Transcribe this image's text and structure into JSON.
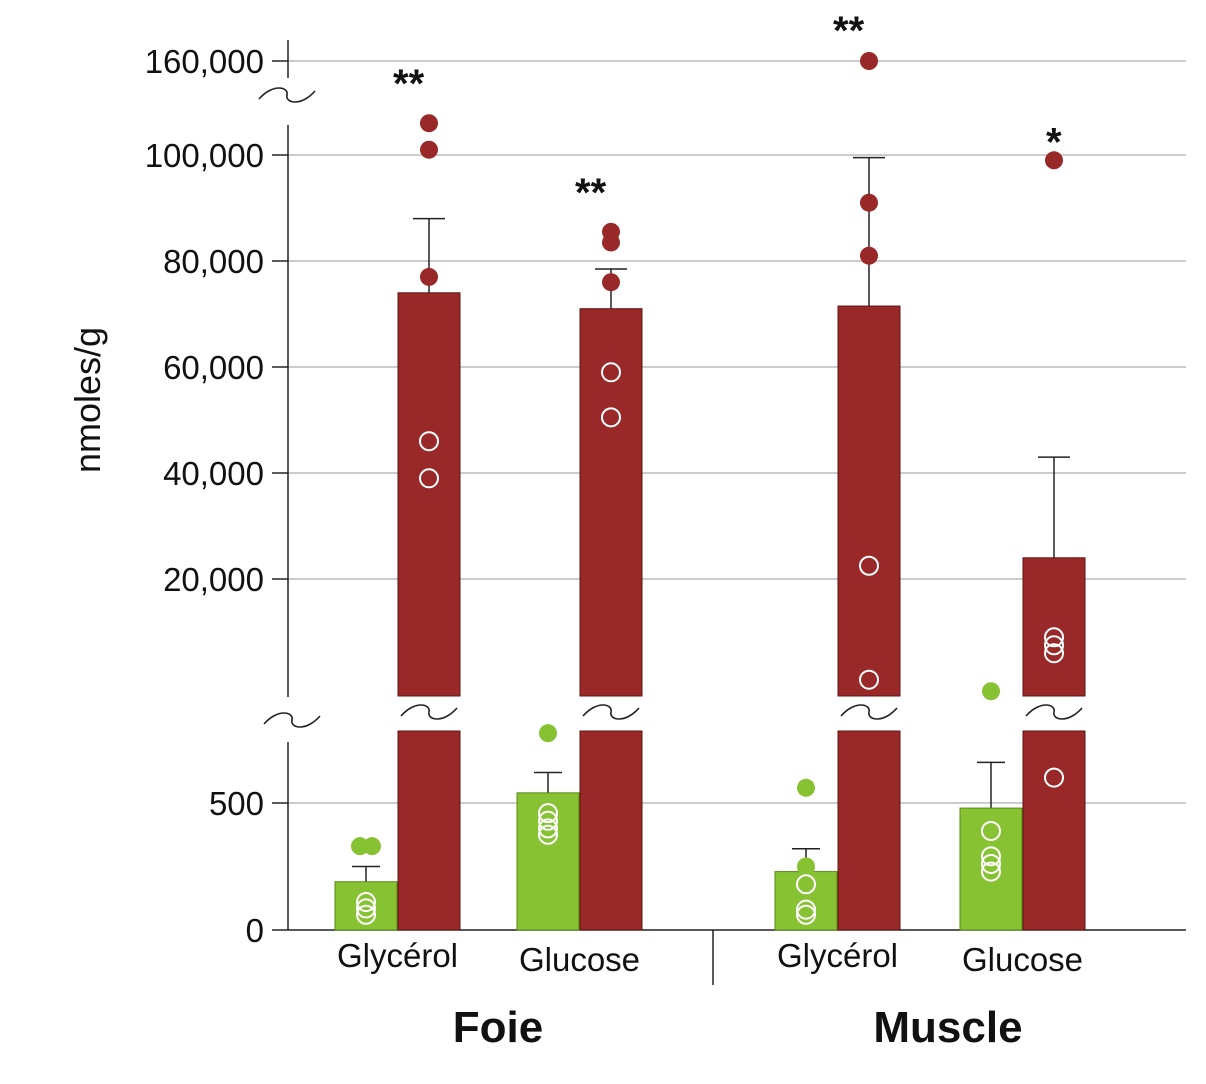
{
  "chart_data": {
    "type": "bar",
    "title": "",
    "ylabel": "nmoles/g",
    "xlabel": "",
    "ylim_lower": [
      0,
      780
    ],
    "ylim_upper": [
      0,
      160000
    ],
    "axis_break": true,
    "grid": true,
    "colors": {
      "glycerol_series": "#86c232",
      "tissue_series": "#992828"
    },
    "yticks": [
      {
        "label": "0",
        "value": 0,
        "seg": "lower"
      },
      {
        "label": "500",
        "value": 500,
        "seg": "lower"
      },
      {
        "label": "20,000",
        "value": 20000,
        "seg": "upper"
      },
      {
        "label": "40,000",
        "value": 40000,
        "seg": "upper"
      },
      {
        "label": "60,000",
        "value": 60000,
        "seg": "upper"
      },
      {
        "label": "80,000",
        "value": 80000,
        "seg": "upper"
      },
      {
        "label": "100,000",
        "value": 100000,
        "seg": "upper"
      },
      {
        "label": "160,000",
        "value": 160000,
        "seg": "top"
      }
    ],
    "groups": [
      {
        "label": "Foie",
        "categories": [
          {
            "label": "Glycérol",
            "significance": "**",
            "green": {
              "mean": 190,
              "err": 250,
              "filled": [
                330,
                330
              ],
              "open": [
                110,
                85,
                60
              ]
            },
            "red": {
              "mean": 74000,
              "err": 88000,
              "points": [
                {
                  "v": 106000,
                  "f": 1
                },
                {
                  "v": 101000,
                  "f": 1
                },
                {
                  "v": 77000,
                  "f": 1
                },
                {
                  "v": 46000,
                  "f": 0
                },
                {
                  "v": 39000,
                  "f": 0
                }
              ]
            }
          },
          {
            "label": "Glucose",
            "significance": "**",
            "green": {
              "mean": 540,
              "err": 620,
              "filled": [
                775
              ],
              "open": [
                460,
                430,
                400,
                375
              ]
            },
            "red": {
              "mean": 71000,
              "err": 78500,
              "points": [
                {
                  "v": 85500,
                  "f": 1
                },
                {
                  "v": 83500,
                  "f": 1
                },
                {
                  "v": 76000,
                  "f": 1
                },
                {
                  "v": 59000,
                  "f": 0
                },
                {
                  "v": 50500,
                  "f": 0
                }
              ]
            }
          }
        ]
      },
      {
        "label": "Muscle",
        "categories": [
          {
            "label": "Glycérol",
            "significance": "**",
            "green": {
              "mean": 230,
              "err": 320,
              "filled": [
                560,
                250
              ],
              "open": [
                180,
                80,
                60
              ]
            },
            "red": {
              "mean": 71500,
              "err": 99500,
              "points": [
                {
                  "v": 160000,
                  "f": 1
                },
                {
                  "v": 91000,
                  "f": 1
                },
                {
                  "v": 81000,
                  "f": 1
                },
                {
                  "v": 22500,
                  "f": 0
                },
                {
                  "v": 1000,
                  "f": 0
                }
              ]
            }
          },
          {
            "label": "Glucose",
            "significance": "*",
            "green": {
              "mean": 480,
              "err": 660,
              "filled": [
                940
              ],
              "open": [
                390,
                290,
                260,
                230
              ]
            },
            "red": {
              "mean": 24000,
              "err": 43000,
              "points": [
                {
                  "v": 99000,
                  "f": 1
                },
                {
                  "v": 9000,
                  "f": 0
                },
                {
                  "v": 7500,
                  "f": 0
                },
                {
                  "v": 6000,
                  "f": 0
                }
              ],
              "lower_open": [
                600
              ]
            }
          }
        ]
      }
    ]
  }
}
